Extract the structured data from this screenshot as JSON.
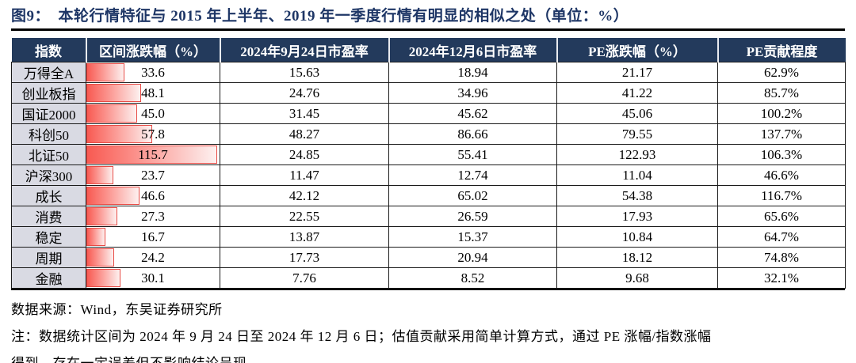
{
  "title": "图9：  本轮行情特征与 2015 年上半年、2019 年一季度行情有明显的相似之处（单位：%）",
  "colors": {
    "title_color": "#1e3666",
    "header_bg": "#233a5c",
    "index_col_bg": "#d9dae3",
    "bar_left": "#f85a52",
    "bar_right": "#fdf1f0",
    "bar_border": "#e84b45"
  },
  "table": {
    "columns": [
      "指数",
      "区间涨跌幅（%）",
      "2024年9月24日市盈率",
      "2024年12月6日市盈率",
      "PE涨跌幅（%）",
      "PE贡献程度"
    ],
    "bar_scale_max": 117.5,
    "rows": [
      [
        "万得全A",
        "33.6",
        "15.63",
        "18.94",
        "21.17",
        "62.9%"
      ],
      [
        "创业板指",
        "48.1",
        "24.76",
        "34.96",
        "41.22",
        "85.7%"
      ],
      [
        "国证2000",
        "45.0",
        "31.45",
        "45.62",
        "45.06",
        "100.2%"
      ],
      [
        "科创50",
        "57.8",
        "48.27",
        "86.66",
        "79.55",
        "137.7%"
      ],
      [
        "北证50",
        "115.7",
        "24.85",
        "55.41",
        "122.93",
        "106.3%"
      ],
      [
        "沪深300",
        "23.7",
        "11.47",
        "12.74",
        "11.04",
        "46.6%"
      ],
      [
        "成长",
        "46.6",
        "42.12",
        "65.02",
        "54.38",
        "116.7%"
      ],
      [
        "消费",
        "27.3",
        "22.55",
        "26.59",
        "17.93",
        "65.6%"
      ],
      [
        "稳定",
        "16.7",
        "13.87",
        "15.37",
        "10.84",
        "64.7%"
      ],
      [
        "周期",
        "24.2",
        "17.73",
        "20.94",
        "18.12",
        "74.8%"
      ],
      [
        "金融",
        "30.1",
        "7.76",
        "8.52",
        "9.68",
        "32.1%"
      ]
    ]
  },
  "footer": {
    "source": "数据来源：Wind，东吴证券研究所",
    "note_lines": [
      "注：数据统计区间为 2024 年 9 月 24 日至 2024 年 12 月 6 日；估值贡献采用简单计算方式，通过 PE 涨幅/指数涨幅",
      "得到，存在一定误差但不影响结论呈现。"
    ]
  },
  "chart_data": {
    "type": "table",
    "title": "图9：本轮行情特征与 2015 年上半年、2019 年一季度行情有明显的相似之处（单位：%）",
    "columns": [
      "指数",
      "区间涨跌幅（%）",
      "2024年9月24日市盈率",
      "2024年12月6日市盈率",
      "PE涨跌幅（%）",
      "PE贡献程度"
    ],
    "embedded_bar": {
      "column": "区间涨跌幅（%）",
      "orientation": "horizontal",
      "color": "red-gradient",
      "xlim": [
        0,
        117.5
      ]
    },
    "series": [
      {
        "name": "区间涨跌幅（%）",
        "values": [
          33.6,
          48.1,
          45.0,
          57.8,
          115.7,
          23.7,
          46.6,
          27.3,
          16.7,
          24.2,
          30.1
        ]
      },
      {
        "name": "2024年9月24日市盈率",
        "values": [
          15.63,
          24.76,
          31.45,
          48.27,
          24.85,
          11.47,
          42.12,
          22.55,
          13.87,
          17.73,
          7.76
        ]
      },
      {
        "name": "2024年12月6日市盈率",
        "values": [
          18.94,
          34.96,
          45.62,
          86.66,
          55.41,
          12.74,
          65.02,
          26.59,
          15.37,
          20.94,
          8.52
        ]
      },
      {
        "name": "PE涨跌幅（%）",
        "values": [
          21.17,
          41.22,
          45.06,
          79.55,
          122.93,
          11.04,
          54.38,
          17.93,
          10.84,
          18.12,
          9.68
        ]
      },
      {
        "name": "PE贡献程度",
        "values": [
          "62.9%",
          "85.7%",
          "100.2%",
          "137.7%",
          "106.3%",
          "46.6%",
          "116.7%",
          "65.6%",
          "64.7%",
          "74.8%",
          "32.1%"
        ]
      }
    ],
    "categories": [
      "万得全A",
      "创业板指",
      "国证2000",
      "科创50",
      "北证50",
      "沪深300",
      "成长",
      "消费",
      "稳定",
      "周期",
      "金融"
    ]
  }
}
